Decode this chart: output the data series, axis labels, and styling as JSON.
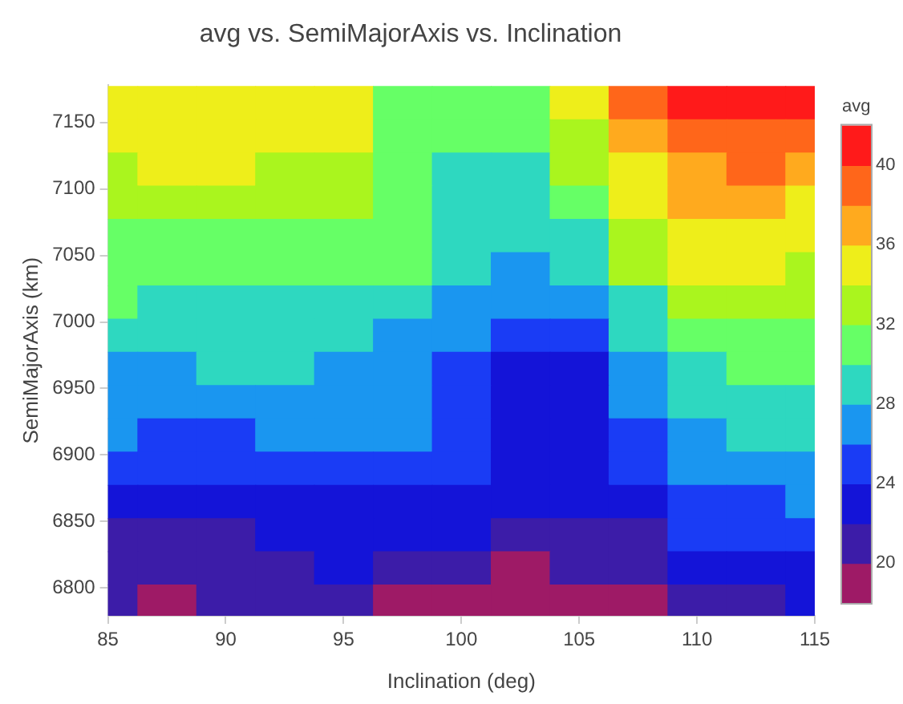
{
  "chart_data": {
    "type": "heatmap",
    "title": "avg vs. SemiMajorAxis vs. Inclination",
    "xlabel": "Inclination (deg)",
    "ylabel": "SemiMajorAxis (km)",
    "clabel": "avg",
    "x": [
      85,
      87.5,
      90,
      92.5,
      95,
      97.5,
      100,
      102.5,
      105,
      107.5,
      110,
      112.5,
      115
    ],
    "y": [
      7165,
      7140,
      7115,
      7090,
      7065,
      7040,
      7015,
      6990,
      6965,
      6940,
      6915,
      6890,
      6865,
      6840,
      6815,
      6790
    ],
    "cells": [
      [
        35,
        35,
        35,
        35,
        35,
        31,
        31,
        31,
        35,
        39,
        41,
        41,
        41
      ],
      [
        35,
        35,
        35,
        35,
        35,
        31,
        31,
        31,
        33,
        37,
        39,
        39,
        39
      ],
      [
        33,
        35,
        35,
        33,
        33,
        31,
        29,
        29,
        33,
        35,
        37,
        39,
        37
      ],
      [
        33,
        33,
        33,
        33,
        33,
        31,
        29,
        29,
        31,
        35,
        37,
        37,
        35
      ],
      [
        31,
        31,
        31,
        31,
        31,
        31,
        29,
        29,
        29,
        33,
        35,
        35,
        35
      ],
      [
        31,
        31,
        31,
        31,
        31,
        31,
        29,
        27,
        29,
        33,
        35,
        35,
        33
      ],
      [
        30,
        29,
        29,
        29,
        29,
        29,
        27,
        27,
        27,
        29,
        33,
        33,
        33
      ],
      [
        29,
        29,
        29,
        29,
        29,
        27,
        26,
        25,
        25,
        29,
        31,
        31,
        31
      ],
      [
        27,
        27,
        28,
        28,
        27,
        27,
        25,
        23,
        23,
        27,
        29,
        31,
        30
      ],
      [
        27,
        27,
        27,
        27,
        27,
        27,
        25,
        23,
        23,
        27,
        28,
        29,
        29
      ],
      [
        27,
        25,
        25,
        26,
        26,
        26,
        25,
        23,
        23,
        25,
        27,
        28,
        28
      ],
      [
        25,
        25,
        25,
        25,
        25,
        25,
        24,
        23,
        23,
        24,
        26,
        27,
        27
      ],
      [
        23,
        23,
        23,
        23,
        23,
        23,
        23,
        22,
        22,
        23,
        25,
        25,
        26
      ],
      [
        21,
        21,
        21,
        23,
        23,
        23,
        22,
        21,
        21,
        21,
        25,
        25,
        25
      ],
      [
        21,
        20,
        21,
        21,
        22,
        21,
        20,
        19,
        20,
        21,
        23,
        23,
        23
      ],
      [
        21,
        19,
        21,
        21,
        21,
        19,
        19,
        19,
        19,
        19,
        21,
        21,
        22
      ]
    ],
    "colors": [
      "#9e1a66",
      "#3c1ca8",
      "#1414d8",
      "#1a3cf5",
      "#1a96f0",
      "#2ed8c0",
      "#66ff66",
      "#aaf51e",
      "#eeee1a",
      "#ffaa1e",
      "#ff661a",
      "#ff1a1a"
    ],
    "clim": [
      18,
      42
    ],
    "cticks": [
      20,
      24,
      28,
      32,
      36,
      40
    ],
    "xlim": [
      85,
      115
    ],
    "xticks": [
      85,
      90,
      95,
      100,
      105,
      110,
      115
    ],
    "ylim": [
      6779,
      7178
    ],
    "yticks": [
      6800,
      6850,
      6900,
      6950,
      7000,
      7050,
      7100,
      7150
    ],
    "grid": false
  }
}
